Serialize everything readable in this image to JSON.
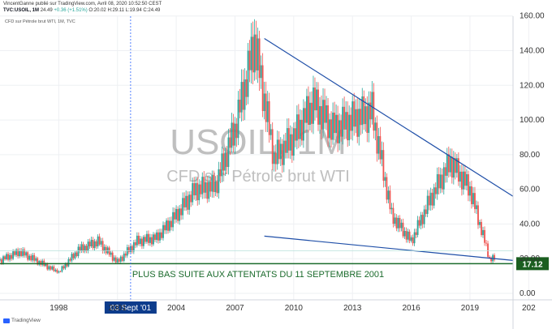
{
  "header": {
    "publisher_line": "VincentGanne publié sur TradingView.com, Avril 08, 2020 10:52:50 CEST",
    "symbol": "TVC:USOIL, 1M",
    "ohlc_prefix": "24.49",
    "ohlc_change": "+0.36 (+1.51%)",
    "ohlc_values": "O:20.02 H:29.11 L:19.94 C:24.49"
  },
  "legend_label": "CFD sur Pétrole brut WTI, 1M, TVC",
  "watermark": {
    "title": "USOIL, 1M",
    "subtitle": "CFD sur Pétrole brut WTI"
  },
  "annotation": "PLUS BAS SUITE AUX ATTENTATS DU 11 SEPTEMBRE 2001",
  "current_price_label": "17.12",
  "crosshair_date_label": "03 Sept '01",
  "footer_brand": "TradingView",
  "colors": {
    "up": "#26a69a",
    "down": "#ef5350",
    "trendline": "#1f4fa8",
    "support_line": "#1b6b2c",
    "annotation_text": "#1b6b2c",
    "price_badge": "#1b5e20",
    "date_badge": "#0d3c8c",
    "crosshair": "#2962ff"
  },
  "chart_data": {
    "type": "candlestick",
    "title": "USOIL, 1M",
    "subtitle": "CFD sur Pétrole brut WTI",
    "x_tick_labels": [
      "1998",
      "2001",
      "2004",
      "2007",
      "2010",
      "2013",
      "2016",
      "2019",
      "202"
    ],
    "y_tick_labels": [
      "0.00",
      "20.00",
      "40.00",
      "60.00",
      "80.00",
      "100.00",
      "120.00",
      "140.00",
      "160.00"
    ],
    "ylim": [
      0,
      160
    ],
    "xlim": [
      1995.0,
      2021.2
    ],
    "grid": true,
    "yearly_close_approx": [
      {
        "year": 1995,
        "price": 19
      },
      {
        "year": 1996,
        "price": 24
      },
      {
        "year": 1997,
        "price": 18
      },
      {
        "year": 1998,
        "price": 12
      },
      {
        "year": 1999,
        "price": 25
      },
      {
        "year": 2000,
        "price": 30
      },
      {
        "year": 2001,
        "price": 18
      },
      {
        "year": 2002,
        "price": 30
      },
      {
        "year": 2003,
        "price": 32
      },
      {
        "year": 2004,
        "price": 45
      },
      {
        "year": 2005,
        "price": 60
      },
      {
        "year": 2006,
        "price": 62
      },
      {
        "year": 2007,
        "price": 95
      },
      {
        "year": 2008,
        "price": 145
      },
      {
        "year": 2009,
        "price": 78
      },
      {
        "year": 2010,
        "price": 90
      },
      {
        "year": 2011,
        "price": 110
      },
      {
        "year": 2012,
        "price": 95
      },
      {
        "year": 2013,
        "price": 100
      },
      {
        "year": 2014,
        "price": 105
      },
      {
        "year": 2015,
        "price": 45
      },
      {
        "year": 2016,
        "price": 30
      },
      {
        "year": 2017,
        "price": 55
      },
      {
        "year": 2018,
        "price": 76
      },
      {
        "year": 2019,
        "price": 60
      },
      {
        "year": 2020,
        "price": 20
      }
    ],
    "trendlines": [
      {
        "name": "upper",
        "from": {
          "x": 2008.5,
          "y": 147
        },
        "to": {
          "x": 2021.2,
          "y": 56
        }
      },
      {
        "name": "lower",
        "from": {
          "x": 2008.5,
          "y": 33
        },
        "to": {
          "x": 2021.2,
          "y": 19
        }
      }
    ],
    "support_level": 17.12,
    "vertical_marker": "2001-09-03"
  }
}
